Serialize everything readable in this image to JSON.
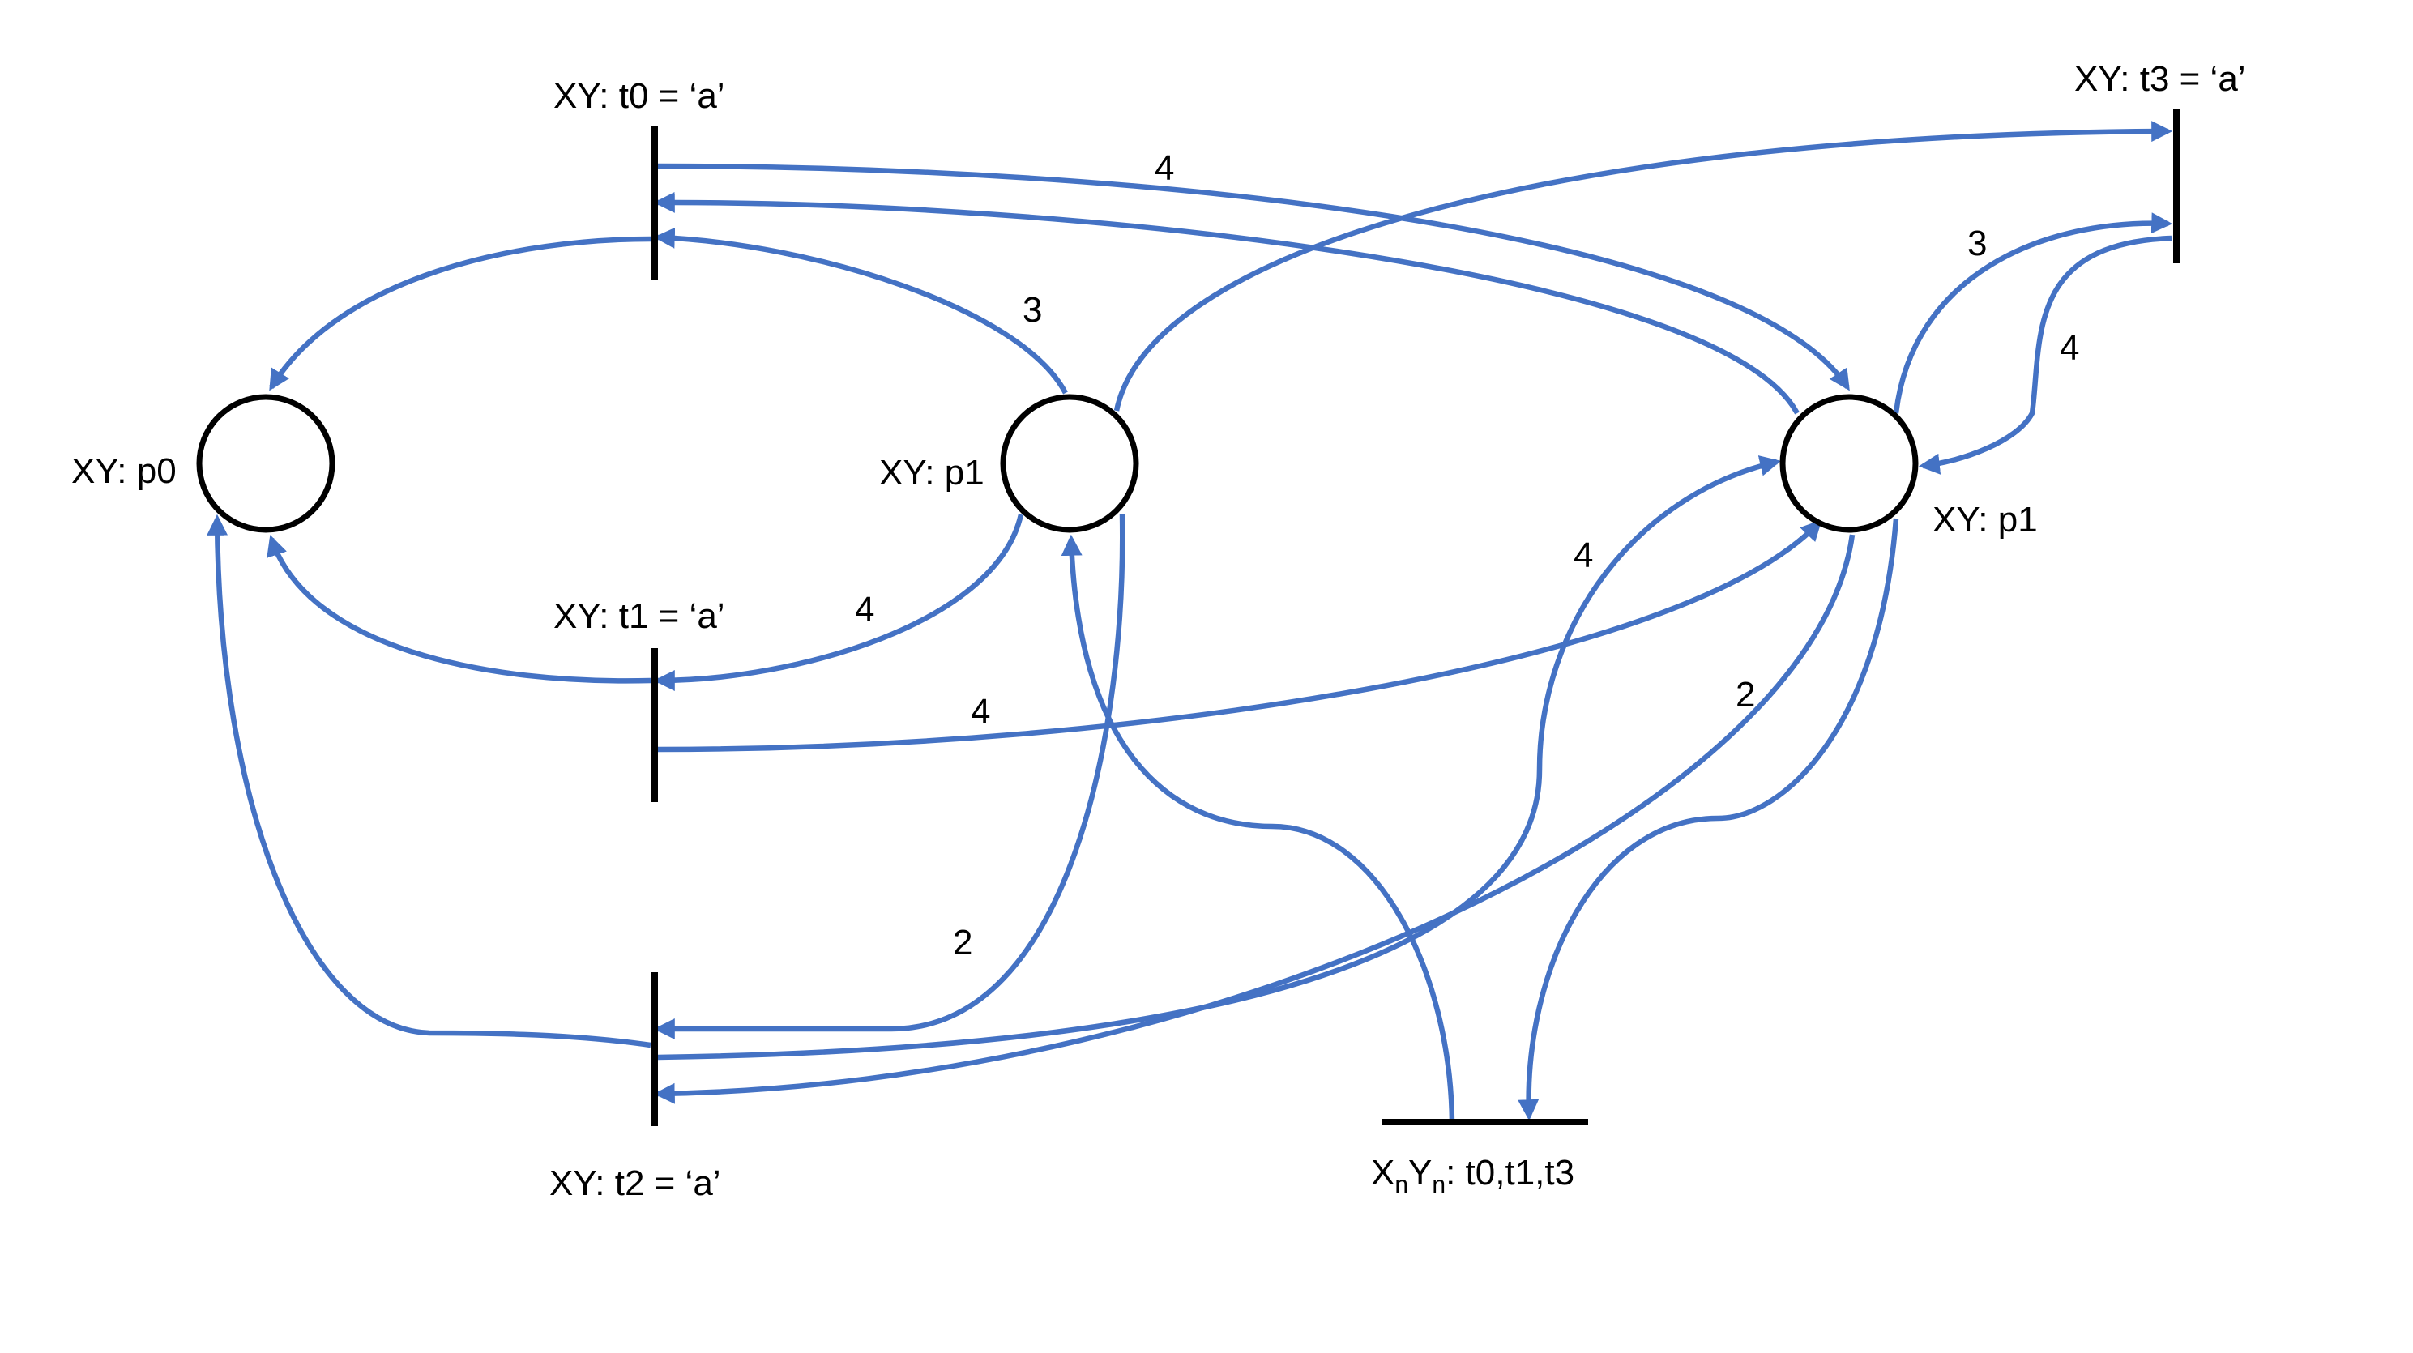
{
  "colors": {
    "arc": "#4472C4",
    "node": "#000000"
  },
  "places": {
    "p0": {
      "label": "XY: p0"
    },
    "p1a": {
      "label": "XY: p1"
    },
    "p1b": {
      "label": "XY: p1"
    }
  },
  "transitions": {
    "t0": {
      "label": "XY: t0 = ‘a’"
    },
    "t1": {
      "label": "XY: t1 = ‘a’"
    },
    "t2": {
      "label": "XY: t2 = ‘a’"
    },
    "t3": {
      "label": "XY: t3 = ‘a’"
    },
    "sync": {
      "prefix_x": "X",
      "sub_n": "n",
      "prefix_y": "Y",
      "suffix": ": t0,t1,t3"
    }
  },
  "arc_weights": {
    "t0_to_p1b": "4",
    "p1a_to_t0": "3",
    "p1a_to_t1": "4",
    "t1_to_p1b": "4",
    "p1b_to_t3": "3",
    "t3_to_p1b": "4",
    "t2_to_p1b": "4",
    "p1b_to_sync": "2",
    "p1a_to_t2": "2"
  }
}
